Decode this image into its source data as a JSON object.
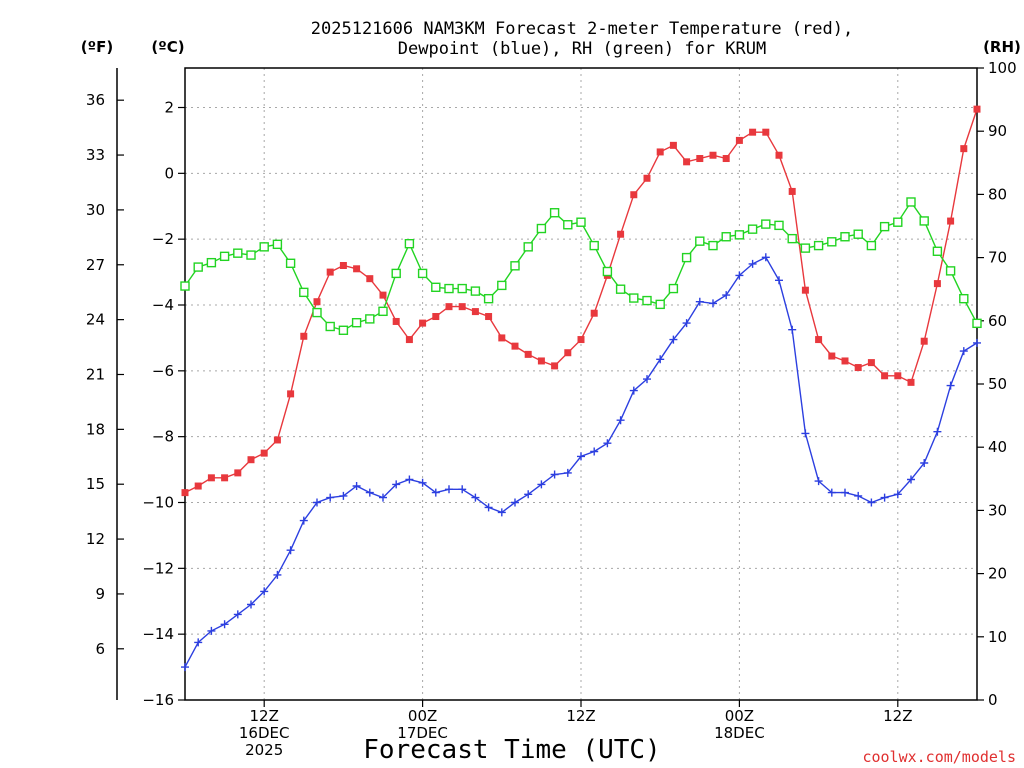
{
  "chart_data": {
    "type": "line",
    "title_line1": "2025121606 NAM3KM Forecast 2-meter Temperature (red),",
    "title_line2": "Dewpoint (blue), RH (green) for KRUM",
    "xlabel": "Forecast Time (UTC)",
    "credit": "coolwx.com/models",
    "units": {
      "f": "(ºF)",
      "c": "(ºC)",
      "rh": "(RH)"
    },
    "x_hours_range": [
      6,
      66
    ],
    "y_c_range": [
      -16,
      3.2
    ],
    "y_rh_range": [
      0,
      100
    ],
    "y_c_ticks": [
      "−16",
      "−14",
      "−12",
      "−10",
      "−8",
      "−6",
      "−4",
      "−2",
      "0",
      "2"
    ],
    "y_c_tick_values": [
      -16,
      -14,
      -12,
      -10,
      -8,
      -6,
      -4,
      -2,
      0,
      2
    ],
    "y_f_ticks": [
      "6",
      "9",
      "12",
      "15",
      "18",
      "21",
      "24",
      "27",
      "30",
      "33",
      "36"
    ],
    "y_f_tick_values": [
      6,
      9,
      12,
      15,
      18,
      21,
      24,
      27,
      30,
      33,
      36
    ],
    "y_rh_ticks": [
      "0",
      "10",
      "20",
      "30",
      "40",
      "50",
      "60",
      "70",
      "80",
      "90",
      "100"
    ],
    "y_rh_tick_values": [
      0,
      10,
      20,
      30,
      40,
      50,
      60,
      70,
      80,
      90,
      100
    ],
    "x_ticks": [
      {
        "hour": 12,
        "lines": [
          "12Z",
          "16DEC",
          "2025"
        ]
      },
      {
        "hour": 24,
        "lines": [
          "00Z",
          "17DEC"
        ]
      },
      {
        "hour": 36,
        "lines": [
          "12Z"
        ]
      },
      {
        "hour": 48,
        "lines": [
          "00Z",
          "18DEC"
        ]
      },
      {
        "hour": 60,
        "lines": [
          "12Z"
        ]
      }
    ],
    "hours": [
      6,
      7,
      8,
      9,
      10,
      11,
      12,
      13,
      14,
      15,
      16,
      17,
      18,
      19,
      20,
      21,
      22,
      23,
      24,
      25,
      26,
      27,
      28,
      29,
      30,
      31,
      32,
      33,
      34,
      35,
      36,
      37,
      38,
      39,
      40,
      41,
      42,
      43,
      44,
      45,
      46,
      47,
      48,
      49,
      50,
      51,
      52,
      53,
      54,
      55,
      56,
      57,
      58,
      59,
      60,
      61,
      62,
      63,
      64,
      65,
      66
    ],
    "series": [
      {
        "name": "2-meter Temperature",
        "unit": "C",
        "color": "#e8383d",
        "marker": "filled-square",
        "values": [
          -9.7,
          -9.5,
          -9.25,
          -9.25,
          -9.1,
          -8.7,
          -8.5,
          -8.1,
          -6.7,
          -4.95,
          -3.9,
          -3.0,
          -2.8,
          -2.9,
          -3.2,
          -3.7,
          -4.5,
          -5.05,
          -4.55,
          -4.35,
          -4.05,
          -4.05,
          -4.2,
          -4.35,
          -5.0,
          -5.25,
          -5.5,
          -5.7,
          -5.85,
          -5.45,
          -5.05,
          -4.25,
          -3.1,
          -1.85,
          -0.65,
          -0.15,
          0.65,
          0.85,
          0.35,
          0.45,
          0.55,
          0.45,
          1.0,
          1.25,
          1.25,
          0.55,
          -0.55,
          -3.55,
          -5.05,
          -5.55,
          -5.7,
          -5.9,
          -5.75,
          -6.15,
          -6.15,
          -6.35,
          -5.1,
          -3.35,
          -1.45,
          0.75,
          1.95
        ]
      },
      {
        "name": "Dewpoint",
        "unit": "C",
        "color": "#2c3fe0",
        "marker": "plus",
        "values": [
          -15.0,
          -14.25,
          -13.9,
          -13.7,
          -13.4,
          -13.1,
          -12.7,
          -12.2,
          -11.45,
          -10.55,
          -10.0,
          -9.85,
          -9.8,
          -9.5,
          -9.7,
          -9.85,
          -9.45,
          -9.3,
          -9.4,
          -9.7,
          -9.6,
          -9.6,
          -9.85,
          -10.15,
          -10.3,
          -10.0,
          -9.75,
          -9.45,
          -9.15,
          -9.1,
          -8.6,
          -8.45,
          -8.2,
          -7.5,
          -6.6,
          -6.25,
          -5.65,
          -5.05,
          -4.55,
          -3.9,
          -3.95,
          -3.7,
          -3.1,
          -2.75,
          -2.55,
          -3.25,
          -4.75,
          -7.9,
          -9.35,
          -9.7,
          -9.7,
          -9.8,
          -10.0,
          -9.85,
          -9.75,
          -9.3,
          -8.8,
          -7.85,
          -6.45,
          -5.4,
          -5.15
        ]
      },
      {
        "name": "RH",
        "unit": "%",
        "color": "#22d422",
        "marker": "open-square",
        "values": [
          65.5,
          68.5,
          69.2,
          70.2,
          70.7,
          70.4,
          71.7,
          72.1,
          69.1,
          64.5,
          61.3,
          59.1,
          58.5,
          59.7,
          60.3,
          61.5,
          67.5,
          72.2,
          67.5,
          65.3,
          65.1,
          65.1,
          64.7,
          63.5,
          65.6,
          68.7,
          71.7,
          74.6,
          77.1,
          75.2,
          75.6,
          71.9,
          67.8,
          65.0,
          63.6,
          63.2,
          62.6,
          65.1,
          70.0,
          72.6,
          71.9,
          73.3,
          73.6,
          74.5,
          75.3,
          75.1,
          73.0,
          71.5,
          71.9,
          72.5,
          73.3,
          73.7,
          71.9,
          74.9,
          75.6,
          78.8,
          75.8,
          71.0,
          67.9,
          63.5,
          59.6
        ]
      }
    ]
  }
}
